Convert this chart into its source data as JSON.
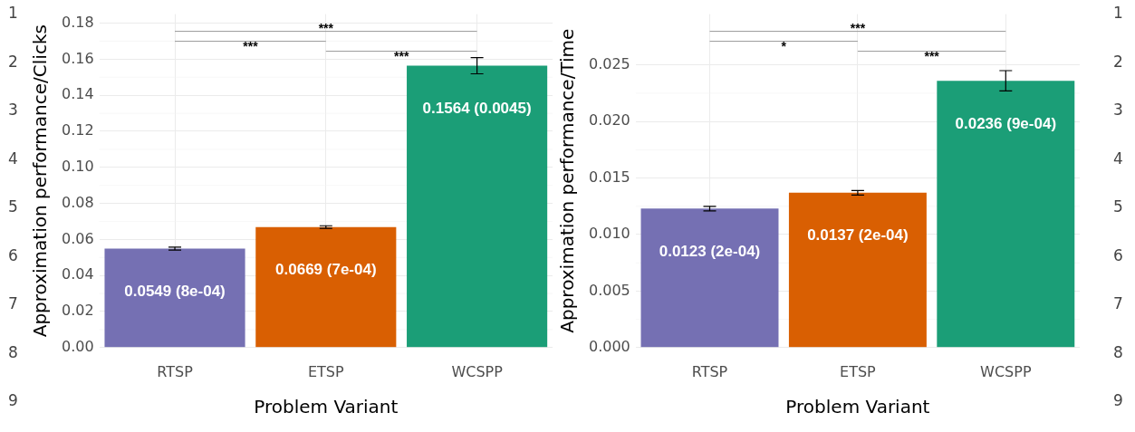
{
  "chart_data": [
    {
      "type": "bar",
      "xlabel": "Problem Variant",
      "ylabel": "Approximation performance/Clicks",
      "categories": [
        "RTSP",
        "ETSP",
        "WCSPP"
      ],
      "values": [
        0.0549,
        0.0669,
        0.1564
      ],
      "errors": [
        0.0008,
        0.0007,
        0.0045
      ],
      "colors": [
        "#7570b3",
        "#d95f02",
        "#1b9e77"
      ],
      "value_labels": [
        "0.0549 (8e-04)",
        "0.0669 (7e-04)",
        "0.1564 (0.0045)"
      ],
      "ylim": [
        0,
        0.185
      ],
      "yticks": [
        {
          "value": 0,
          "label": "0.00"
        },
        {
          "value": 0.02,
          "label": "0.02"
        },
        {
          "value": 0.04,
          "label": "0.04"
        },
        {
          "value": 0.06,
          "label": "0.06"
        },
        {
          "value": 0.08,
          "label": "0.08"
        },
        {
          "value": 0.1,
          "label": "0.10"
        },
        {
          "value": 0.12,
          "label": "0.12"
        },
        {
          "value": 0.14,
          "label": "0.14"
        },
        {
          "value": 0.16,
          "label": "0.16"
        },
        {
          "value": 0.18,
          "label": "0.18"
        }
      ],
      "annotations": [
        "***",
        "***",
        "***",
        "1",
        "2",
        "3",
        "4",
        "5",
        "6",
        "7",
        "8",
        "9"
      ],
      "grid": true,
      "legend": false
    },
    {
      "type": "bar",
      "xlabel": "Problem Variant",
      "ylabel": "Approximation performance/Time",
      "categories": [
        "RTSP",
        "ETSP",
        "WCSPP"
      ],
      "values": [
        0.0123,
        0.0137,
        0.0236
      ],
      "errors": [
        0.0002,
        0.0002,
        0.0009
      ],
      "colors": [
        "#7570b3",
        "#d95f02",
        "#1b9e77"
      ],
      "value_labels": [
        "0.0123 (2e-04)",
        "0.0137 (2e-04)",
        "0.0236 (9e-04)"
      ],
      "ylim": [
        0,
        0.0295
      ],
      "yticks": [
        {
          "value": 0,
          "label": "0.000"
        },
        {
          "value": 0.005,
          "label": "0.005"
        },
        {
          "value": 0.01,
          "label": "0.010"
        },
        {
          "value": 0.015,
          "label": "0.015"
        },
        {
          "value": 0.02,
          "label": "0.020"
        },
        {
          "value": 0.025,
          "label": "0.025"
        }
      ],
      "annotations": [
        "***",
        "*",
        "***",
        "1",
        "2",
        "3",
        "4",
        "5",
        "6",
        "7",
        "8",
        "9"
      ],
      "grid": true,
      "legend": false
    }
  ]
}
